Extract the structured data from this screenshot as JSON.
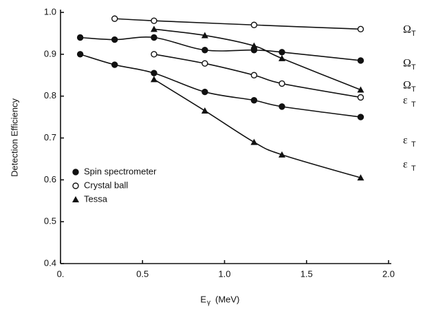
{
  "chart_data": {
    "type": "scatter",
    "y_label": "Detection Efficiency",
    "x_label": "E",
    "x_label_sub": "γ",
    "x_label_unit": "(MeV)",
    "xlim": [
      0,
      2.0
    ],
    "ylim": [
      0.4,
      1.0
    ],
    "xticks": [
      {
        "value": 0,
        "label": "0."
      },
      0.5,
      {
        "value": 1,
        "label": "1.0"
      },
      1.5,
      {
        "value": 2,
        "label": "2.0"
      }
    ],
    "yticks": [
      0.4,
      0.5,
      0.6,
      0.7,
      0.8,
      0.9,
      {
        "value": 1,
        "label": "1.0"
      }
    ],
    "legend": "lower left",
    "series": [
      {
        "name": "Spin spectrometer",
        "marker": "circle-filled",
        "color": "#111111",
        "curves": [
          {
            "x": [
              0.12,
              0.33,
              0.57,
              0.88,
              1.18,
              1.35,
              1.83
            ],
            "values": [
              0.94,
              0.935,
              0.94,
              0.91,
              0.91,
              0.905,
              0.885
            ],
            "label": "Ω",
            "label_sub": "T"
          },
          {
            "x": [
              0.12,
              0.33,
              0.57,
              0.88,
              1.18,
              1.35,
              1.83
            ],
            "values": [
              0.9,
              0.875,
              0.855,
              0.81,
              0.79,
              0.775,
              0.75
            ],
            "label": "ε",
            "label_sub": "T"
          }
        ]
      },
      {
        "name": "Crystal ball",
        "marker": "circle-open",
        "color": "#111111",
        "curves": [
          {
            "x": [
              0.33,
              0.57,
              1.18,
              1.83
            ],
            "values": [
              0.985,
              0.98,
              0.97,
              0.96
            ],
            "label": "Ω",
            "label_sub": "T"
          },
          {
            "x": [
              0.57,
              0.88,
              1.18,
              1.35,
              1.83
            ],
            "values": [
              0.9,
              0.878,
              0.85,
              0.83,
              0.797
            ],
            "label": "ε",
            "label_sub": "T"
          }
        ]
      },
      {
        "name": "Tessa",
        "marker": "triangle",
        "color": "#111111",
        "curves": [
          {
            "x": [
              0.57,
              0.88,
              1.18,
              1.35,
              1.83
            ],
            "values": [
              0.96,
              0.945,
              0.92,
              0.89,
              0.815
            ],
            "label": "Ω",
            "label_sub": "T"
          },
          {
            "x": [
              0.57,
              0.88,
              1.18,
              1.35,
              1.83
            ],
            "values": [
              0.84,
              0.765,
              0.69,
              0.66,
              0.605
            ],
            "label": "ε",
            "label_sub": "T"
          }
        ]
      }
    ]
  }
}
